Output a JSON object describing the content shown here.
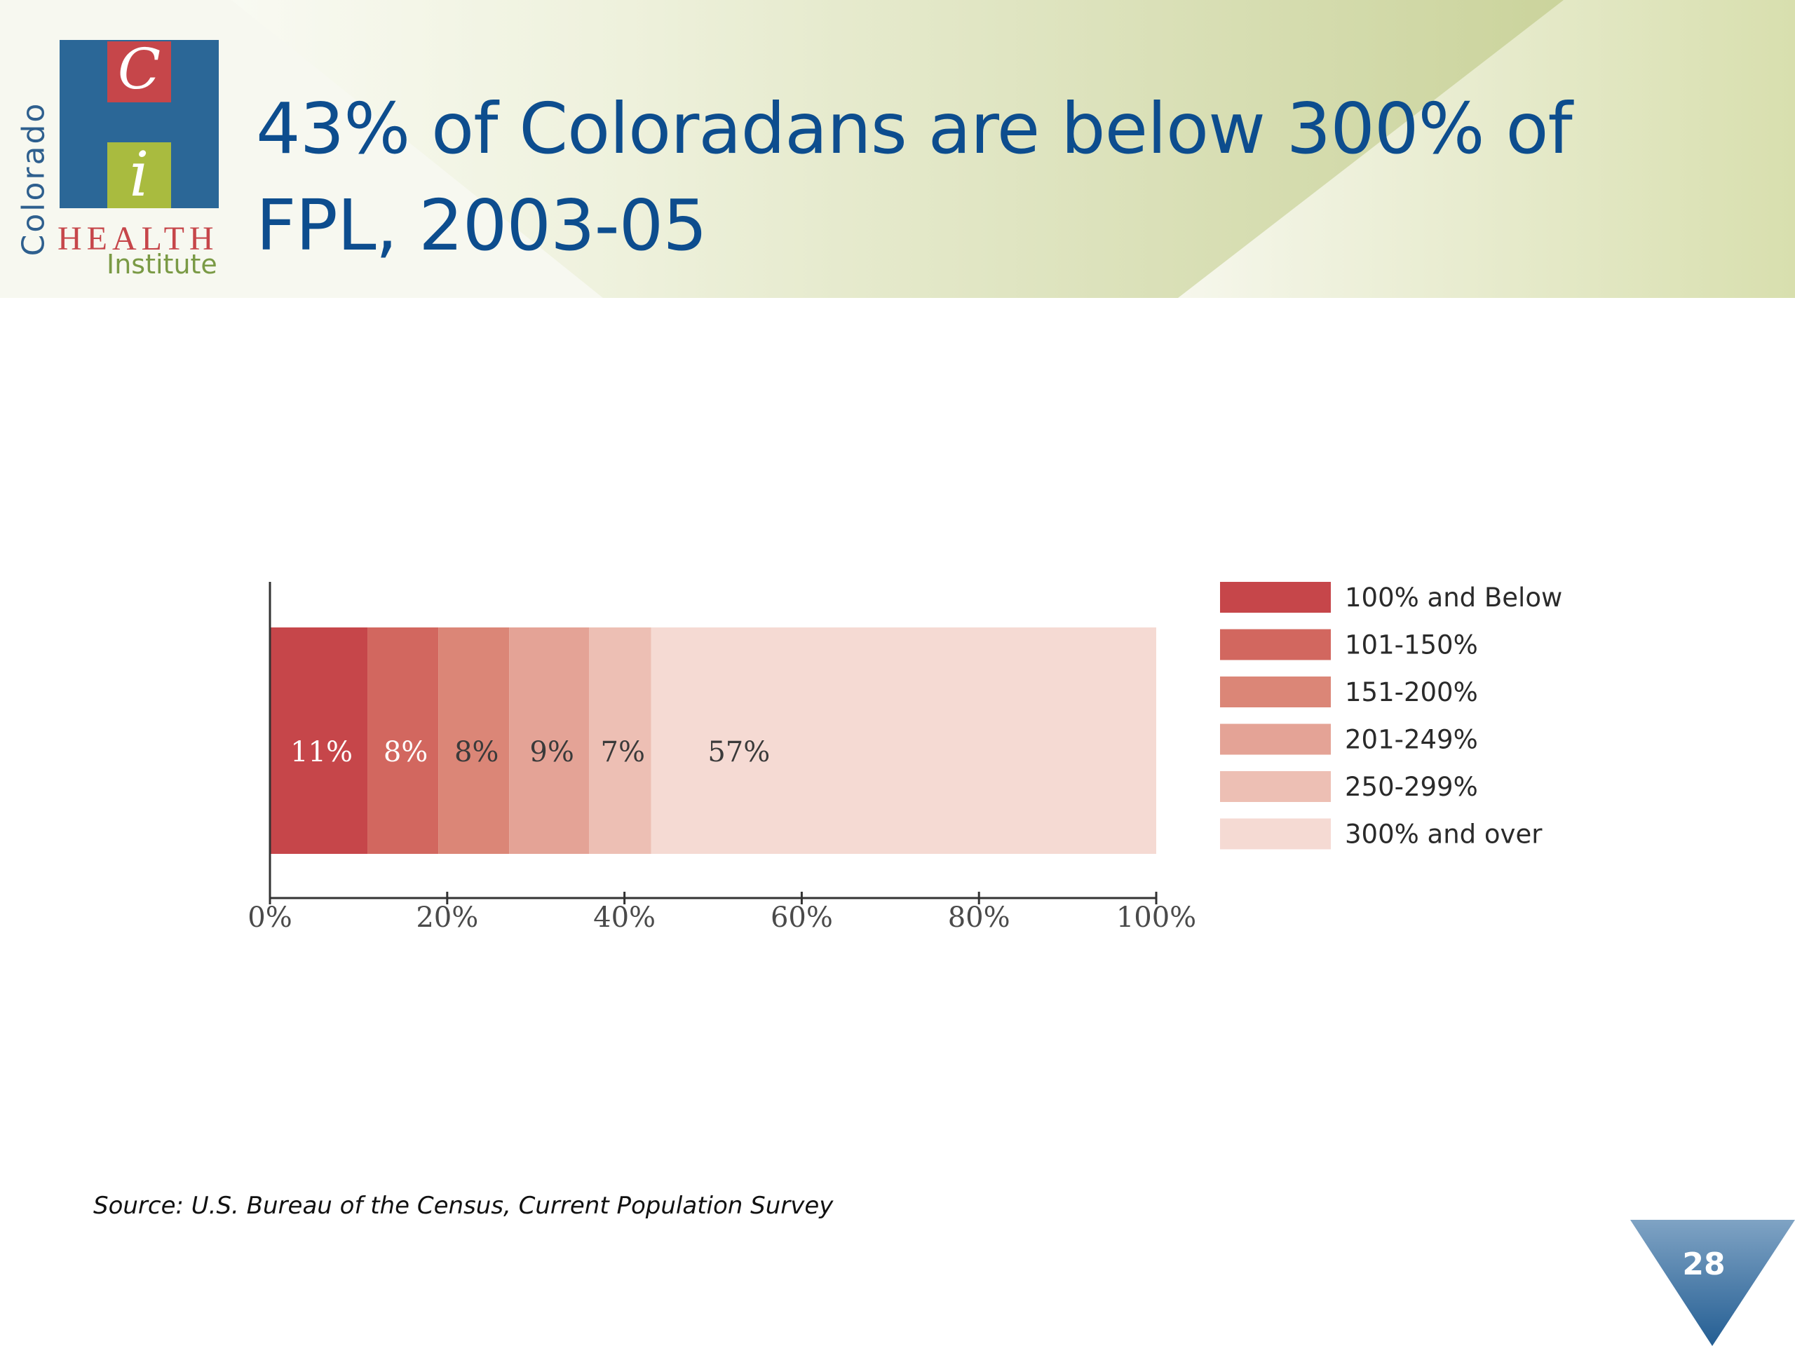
{
  "slide": {
    "title": "43% of Coloradans are below 300% of FPL, 2003-05",
    "source": "Source: U.S. Bureau of the Census, Current Population Survey",
    "page_number": "28"
  },
  "logo": {
    "colorado": "Colorado",
    "c_letter": "C",
    "i_letter": "i",
    "health": "HEALTH",
    "institute": "Institute",
    "colors": {
      "blue": "#2b6797",
      "red": "#c6464a",
      "green": "#a9bb3f"
    }
  },
  "theme": {
    "title_color": "#0d4d8e",
    "header_green": "#c9d39a",
    "badge_color": "#2f6a9b"
  },
  "chart_data": {
    "type": "bar",
    "orientation": "horizontal",
    "stacked": true,
    "categories": [
      ""
    ],
    "series": [
      {
        "name": "100% and Below",
        "values": [
          11
        ],
        "label": "11%",
        "color": "#c6464a",
        "label_color": "#ffffff"
      },
      {
        "name": "101-150%",
        "values": [
          8
        ],
        "label": "8%",
        "color": "#d2675f",
        "label_color": "#ffffff"
      },
      {
        "name": "151-200%",
        "values": [
          8
        ],
        "label": "8%",
        "color": "#db8677",
        "label_color": "#3a3a3a"
      },
      {
        "name": "201-249%",
        "values": [
          9
        ],
        "label": "9%",
        "color": "#e4a396",
        "label_color": "#3a3a3a"
      },
      {
        "name": "250-299%",
        "values": [
          7
        ],
        "label": "7%",
        "color": "#edbfb4",
        "label_color": "#3a3a3a"
      },
      {
        "name": "300% and over",
        "values": [
          57
        ],
        "label": "57%",
        "color": "#f5dad3",
        "label_color": "#3a3a3a"
      }
    ],
    "xlim": [
      0,
      100
    ],
    "xticks": [
      0,
      20,
      40,
      60,
      80,
      100
    ],
    "xtick_labels": [
      "0%",
      "20%",
      "40%",
      "60%",
      "80%",
      "100%"
    ],
    "grid": false,
    "legend_position": "right"
  }
}
